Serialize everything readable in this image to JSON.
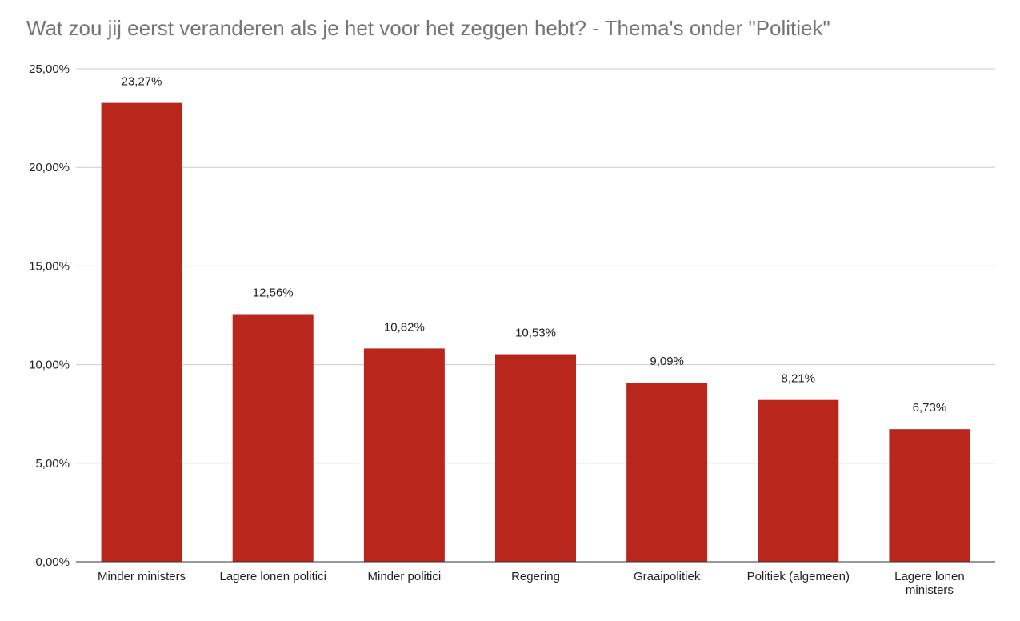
{
  "chart_data": {
    "type": "bar",
    "title": "Wat zou jij eerst veranderen als je het voor het zeggen hebt? - Thema's onder \"Politiek\"",
    "categories": [
      [
        "Minder ministers"
      ],
      [
        "Lagere lonen politici"
      ],
      [
        "Minder politici"
      ],
      [
        "Regering"
      ],
      [
        "Graaipolitiek"
      ],
      [
        "Politiek (algemeen)"
      ],
      [
        "Lagere lonen",
        "ministers"
      ]
    ],
    "values": [
      23.27,
      12.56,
      10.82,
      10.53,
      9.09,
      8.21,
      6.73
    ],
    "data_labels": [
      "23,27%",
      "12,56%",
      "10,82%",
      "10,53%",
      "9,09%",
      "8,21%",
      "6,73%"
    ],
    "y_ticks": [
      0,
      5,
      10,
      15,
      20,
      25
    ],
    "y_tick_labels": [
      "0,00%",
      "5,00%",
      "10,00%",
      "15,00%",
      "20,00%",
      "25,00%"
    ],
    "ylim": [
      0,
      25
    ],
    "grid": true,
    "bar_color": "#b9261c",
    "grid_color": "#cccccc",
    "axis_color": "#333333"
  }
}
